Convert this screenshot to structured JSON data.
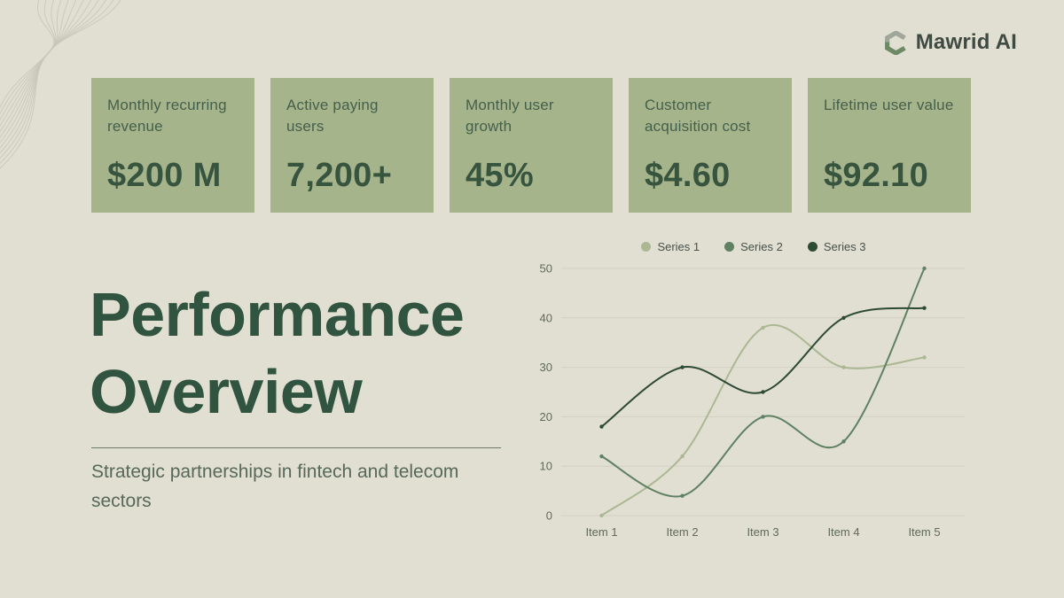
{
  "brand": {
    "name": "Mawrid AI"
  },
  "kpi_cards": [
    {
      "label": "Monthly recurring revenue",
      "value": "$200 M"
    },
    {
      "label": "Active paying users",
      "value": "7,200+"
    },
    {
      "label": "Monthly user growth",
      "value": "45%"
    },
    {
      "label": "Customer acquisition cost",
      "value": "$4.60"
    },
    {
      "label": "Lifetime user value",
      "value": "$92.10"
    }
  ],
  "title": "Performance Overview",
  "subtitle": "Strategic partnerships in fintech and telecom sectors",
  "chart_data": {
    "type": "line",
    "title": "",
    "categories": [
      "Item 1",
      "Item 2",
      "Item 3",
      "Item 4",
      "Item 5"
    ],
    "series": [
      {
        "name": "Series 1",
        "color": "#abb893",
        "values": [
          0,
          12,
          38,
          30,
          32
        ]
      },
      {
        "name": "Series 2",
        "color": "#5e8162",
        "values": [
          12,
          4,
          20,
          15,
          50
        ]
      },
      {
        "name": "Series 3",
        "color": "#2d4a35",
        "values": [
          18,
          30,
          25,
          40,
          42
        ]
      }
    ],
    "xlabel": "",
    "ylabel": "",
    "ylim": [
      0,
      50
    ],
    "yticks": [
      0,
      10,
      20,
      30,
      40,
      50
    ],
    "grid": true,
    "legend_position": "top",
    "curve": "smooth"
  },
  "colors": {
    "background": "#e1ded2",
    "card_background": "#a6b48c",
    "title_text": "#315440",
    "card_value_text": "#37543e",
    "subtitle_text": "#57695a",
    "gridline": "#d3d0c4",
    "logo_text": "#3e4a42"
  }
}
